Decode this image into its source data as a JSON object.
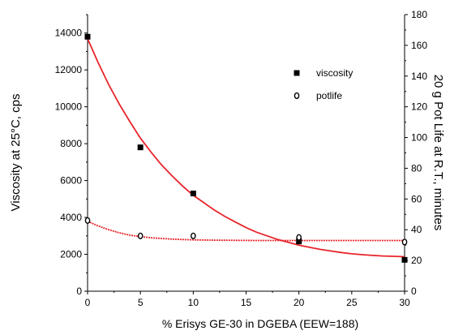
{
  "chart_data": {
    "type": "scatter",
    "xlabel": "% Erisys GE-30 in DGEBA (EEW=188)",
    "ylabel_left": "Viscosity at 25°C, cps",
    "ylabel_right": "20 g Pot Life at R.T., minutes",
    "xlim": [
      0,
      30
    ],
    "ylim_left": [
      0,
      15000
    ],
    "ylim_right": [
      0,
      180
    ],
    "x_ticks": [
      "0",
      "5",
      "10",
      "15",
      "20",
      "25",
      "30"
    ],
    "y_left_ticks": [
      "0",
      "2000",
      "4000",
      "6000",
      "8000",
      "10000",
      "12000",
      "14000"
    ],
    "y_right_ticks": [
      "0",
      "20",
      "40",
      "60",
      "80",
      "100",
      "120",
      "140",
      "160",
      "180"
    ],
    "legend_position": "upper-right inside",
    "colors": {
      "fit_line": "#e8242a",
      "marker": "#000000",
      "axis": "#000000"
    },
    "series": [
      {
        "name": "viscosity",
        "axis": "left",
        "marker": "filled-square",
        "x": [
          0,
          5,
          10,
          20,
          30
        ],
        "y": [
          13800,
          7800,
          5300,
          2700,
          1700
        ]
      },
      {
        "name": "potlife",
        "axis": "right",
        "marker": "open-circle",
        "x": [
          0,
          5,
          10,
          20,
          30
        ],
        "y": [
          46,
          36,
          36,
          35,
          32
        ]
      }
    ],
    "fit_lines": [
      {
        "axis": "left",
        "style": "solid",
        "x": [
          0,
          1,
          2,
          3,
          4,
          5,
          6,
          7,
          8,
          9,
          10,
          11,
          12,
          13,
          14,
          15,
          16,
          17,
          18,
          19,
          20,
          21,
          22,
          23,
          24,
          25,
          26,
          27,
          28,
          29,
          30
        ],
        "y": [
          13700,
          12400,
          11200,
          10150,
          9200,
          8300,
          7550,
          6850,
          6250,
          5700,
          5200,
          4800,
          4400,
          4050,
          3750,
          3450,
          3200,
          3000,
          2800,
          2650,
          2500,
          2380,
          2270,
          2180,
          2100,
          2030,
          1980,
          1940,
          1910,
          1890,
          1870
        ]
      },
      {
        "axis": "right",
        "style": "dashed",
        "x": [
          0,
          1,
          2,
          3,
          4,
          5,
          6,
          7,
          8,
          9,
          10,
          12,
          14,
          16,
          18,
          20,
          22,
          24,
          26,
          28,
          30
        ],
        "y": [
          45.5,
          42.5,
          40,
          38,
          36.5,
          35.5,
          34.8,
          34.3,
          33.9,
          33.6,
          33.4,
          33.2,
          33.1,
          33.0,
          33.0,
          33.0,
          33.0,
          33.0,
          33.0,
          33.0,
          33.0
        ]
      }
    ]
  }
}
